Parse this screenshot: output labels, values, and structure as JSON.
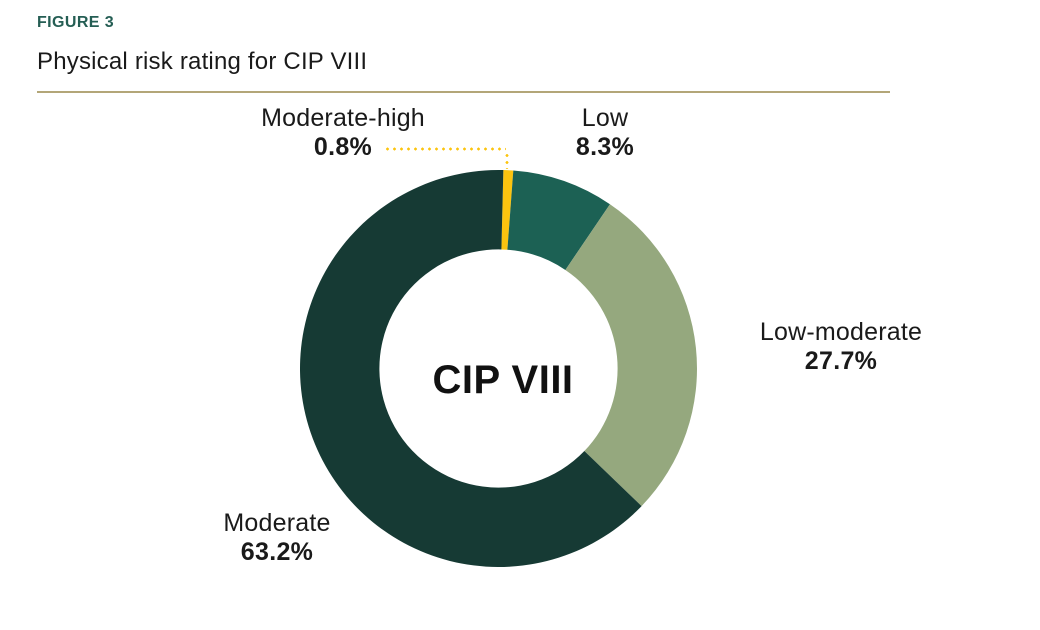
{
  "figure_label": "FIGURE 3",
  "title": "Physical risk rating for CIP VIII",
  "colors": {
    "background": "#ffffff",
    "figure_label": "#255e54",
    "title_text": "#1a1a1a",
    "rule": "#b3a678",
    "label_text": "#1a1a1a",
    "leader_line": "#fcc40f"
  },
  "chart_data": {
    "type": "pie",
    "subtype": "donut",
    "title": "Physical risk rating for CIP VIII",
    "center_label": "CIP VIII",
    "units": "%",
    "direction": "clockwise",
    "start_angle_deg": 1.4,
    "inner_radius_ratio": 0.6,
    "legend_position": "callouts-around-chart",
    "slices": [
      {
        "label": "Moderate-high",
        "value": 0.8,
        "display": "0.8%",
        "color": "#fcc40f"
      },
      {
        "label": "Low",
        "value": 8.3,
        "display": "8.3%",
        "color": "#1c6154"
      },
      {
        "label": "Low-moderate",
        "value": 27.7,
        "display": "27.7%",
        "color": "#95a87e"
      },
      {
        "label": "Moderate",
        "value": 63.2,
        "display": "63.2%",
        "color": "#163a34"
      }
    ]
  }
}
